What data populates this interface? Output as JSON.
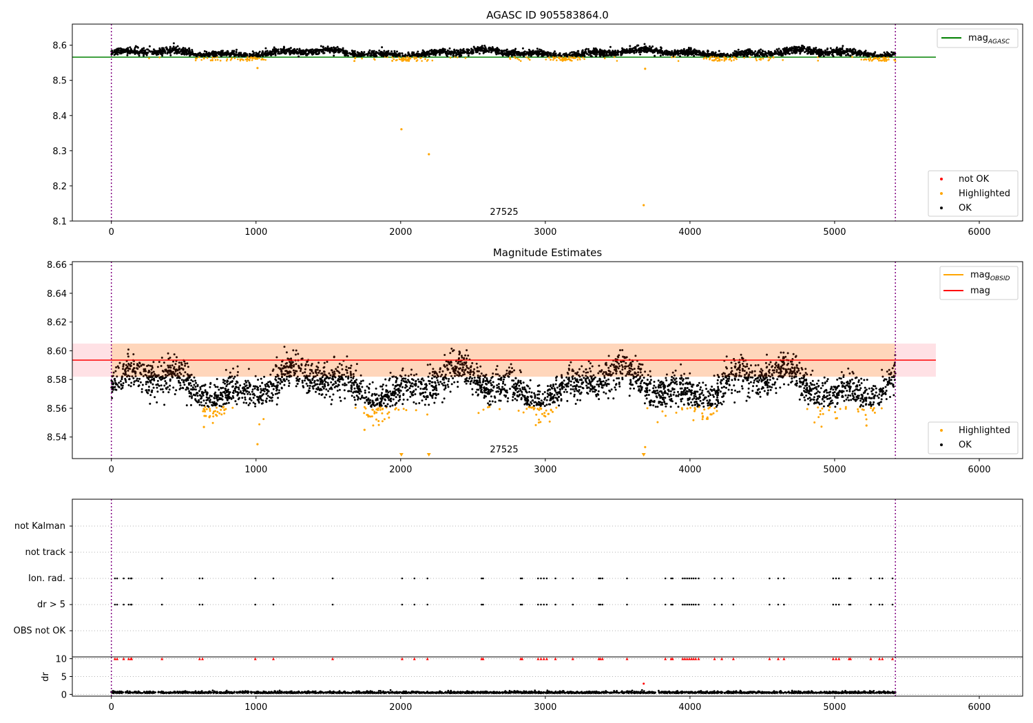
{
  "chart_data": [
    {
      "type": "scatter",
      "title": "AGASC ID 905583864.0",
      "xlim": [
        -270,
        6300
      ],
      "ylim": [
        8.1,
        8.66
      ],
      "xticks": [
        0,
        1000,
        2000,
        3000,
        4000,
        5000,
        6000
      ],
      "yticks": [
        8.1,
        8.2,
        8.3,
        8.4,
        8.5,
        8.6
      ],
      "ytick_labels": [
        "8.1",
        "8.2",
        "8.3",
        "8.4",
        "8.5",
        "8.6"
      ],
      "vlines": [
        0,
        5420
      ],
      "hline": {
        "name": "mag_AGASC",
        "value": 8.566,
        "x_end": 5700,
        "color": "#008000"
      },
      "annotation": "27525",
      "legend_top": {
        "main": "mag",
        "sub": "AGASC",
        "placement": "upper-right"
      },
      "legend_bottom": {
        "entries": [
          "not OK",
          "Highlighted",
          "OK"
        ],
        "colors": [
          "#ff0000",
          "#ffa500",
          "#000000"
        ],
        "placement": "lower-right"
      },
      "ok_baseline": {
        "x_start": 0,
        "x_end": 5420,
        "mean": 8.578,
        "spread": 0.009
      },
      "highlighted_outliers": [
        {
          "x": 1010,
          "y": 8.535
        },
        {
          "x": 2005,
          "y": 8.361
        },
        {
          "x": 2195,
          "y": 8.29
        },
        {
          "x": 3680,
          "y": 8.145
        },
        {
          "x": 3690,
          "y": 8.533
        }
      ]
    },
    {
      "type": "scatter",
      "title": "Magnitude Estimates",
      "xlim": [
        -270,
        6300
      ],
      "ylim": [
        8.525,
        8.662
      ],
      "xticks": [
        0,
        1000,
        2000,
        3000,
        4000,
        5000,
        6000
      ],
      "yticks": [
        8.54,
        8.56,
        8.58,
        8.6,
        8.62,
        8.64,
        8.66
      ],
      "ytick_labels": [
        "8.54",
        "8.56",
        "8.58",
        "8.60",
        "8.62",
        "8.64",
        "8.66"
      ],
      "vlines": [
        0,
        5420
      ],
      "mag": {
        "value": 8.5935,
        "x_end": 5700,
        "color": "#ff0000"
      },
      "mag_band": [
        8.582,
        8.605
      ],
      "annotation": "27525",
      "legend_top": {
        "entries": [
          {
            "main": "mag",
            "sub": "OBSID",
            "color": "#ffa500"
          },
          {
            "main": "mag",
            "sub": "",
            "color": "#ff0000"
          }
        ],
        "placement": "upper-right"
      },
      "legend_bottom": {
        "entries": [
          "Highlighted",
          "OK"
        ],
        "colors": [
          "#ffa500",
          "#000000"
        ],
        "placement": "lower-right"
      },
      "ok_baseline": {
        "x_start": 0,
        "x_end": 5420,
        "mean": 8.576,
        "spread": 0.011
      },
      "highlighted_outliers": [
        {
          "x": 1010,
          "y": 8.535
        },
        {
          "x": 640,
          "y": 8.547
        },
        {
          "x": 1750,
          "y": 8.545
        },
        {
          "x": 3690,
          "y": 8.533
        },
        {
          "x": 5220,
          "y": 8.548
        }
      ],
      "offscale_markers": [
        2005,
        2195,
        3680
      ]
    },
    {
      "type": "scatter",
      "title": "",
      "xlim": [
        -270,
        6300
      ],
      "vlines": [
        0,
        5420
      ],
      "categories": [
        "OBS not OK",
        "dr > 5",
        "Ion. rad.",
        "not track",
        "not Kalman"
      ],
      "flag_x": [
        25,
        40,
        85,
        120,
        135,
        140,
        350,
        610,
        630,
        995,
        1120,
        1530,
        2010,
        2095,
        2185,
        2560,
        2570,
        2830,
        2840,
        2950,
        2970,
        2990,
        3010,
        3070,
        3190,
        3370,
        3380,
        3395,
        3565,
        3830,
        3870,
        3880,
        3950,
        3965,
        3980,
        3995,
        4010,
        4025,
        4040,
        4060,
        4170,
        4220,
        4300,
        4550,
        4610,
        4650,
        4990,
        5010,
        5030,
        5100,
        5110,
        5250,
        5310,
        5330,
        5400
      ]
    },
    {
      "type": "scatter",
      "title": "",
      "ylabel": "dr",
      "xlim": [
        -270,
        6300
      ],
      "ylim": [
        -0.5,
        10.5
      ],
      "xticks": [
        0,
        1000,
        2000,
        3000,
        4000,
        5000,
        6000
      ],
      "yticks": [
        0,
        5,
        10
      ],
      "ytick_labels": [
        "0",
        "5",
        "10"
      ],
      "vlines": [
        0,
        5420
      ],
      "dr_capped": 10,
      "dr_outlier": {
        "x": 3680,
        "y": 3.0
      },
      "dr_baseline": {
        "x_start": 0,
        "x_end": 5420,
        "mean": 0.35,
        "spread": 0.22
      }
    }
  ]
}
